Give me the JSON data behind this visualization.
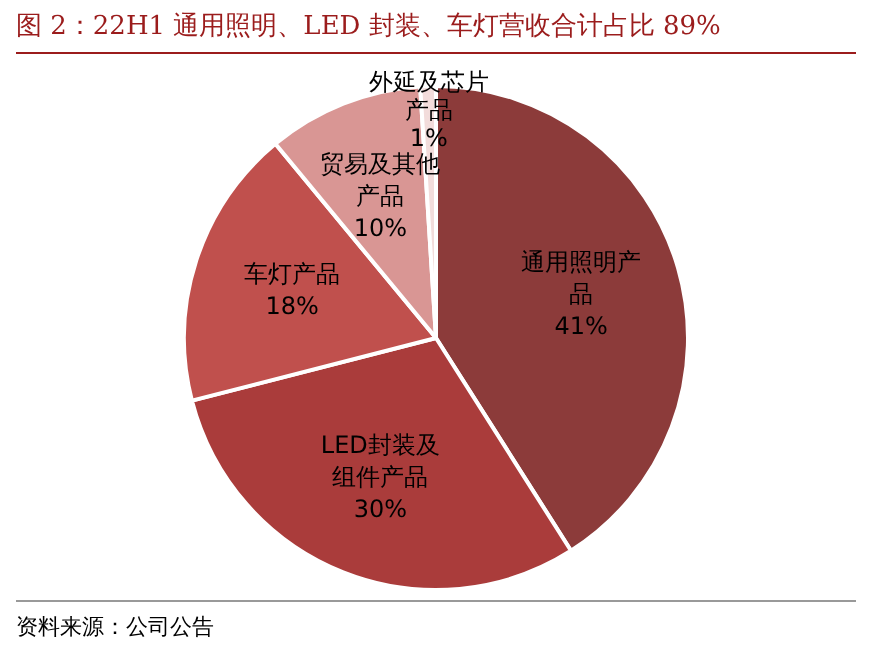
{
  "chart_data": {
    "type": "pie",
    "title": "图 2：22H1 通用照明、LED 封装、车灯营收合计占比 89%",
    "categories": [
      "通用照明产品",
      "LED封装及组件产品",
      "车灯产品",
      "贸易及其他产品",
      "外延及芯片产品"
    ],
    "values": [
      41,
      30,
      18,
      10,
      1
    ],
    "colors": [
      "#8c3b3a",
      "#aa3c3b",
      "#c0504d",
      "#d99694",
      "#f2dcdb"
    ],
    "value_labels": [
      "41%",
      "30%",
      "18%",
      "10%",
      "1%"
    ],
    "legend": false,
    "annotations": [
      "资料来源：公司公告"
    ]
  }
}
